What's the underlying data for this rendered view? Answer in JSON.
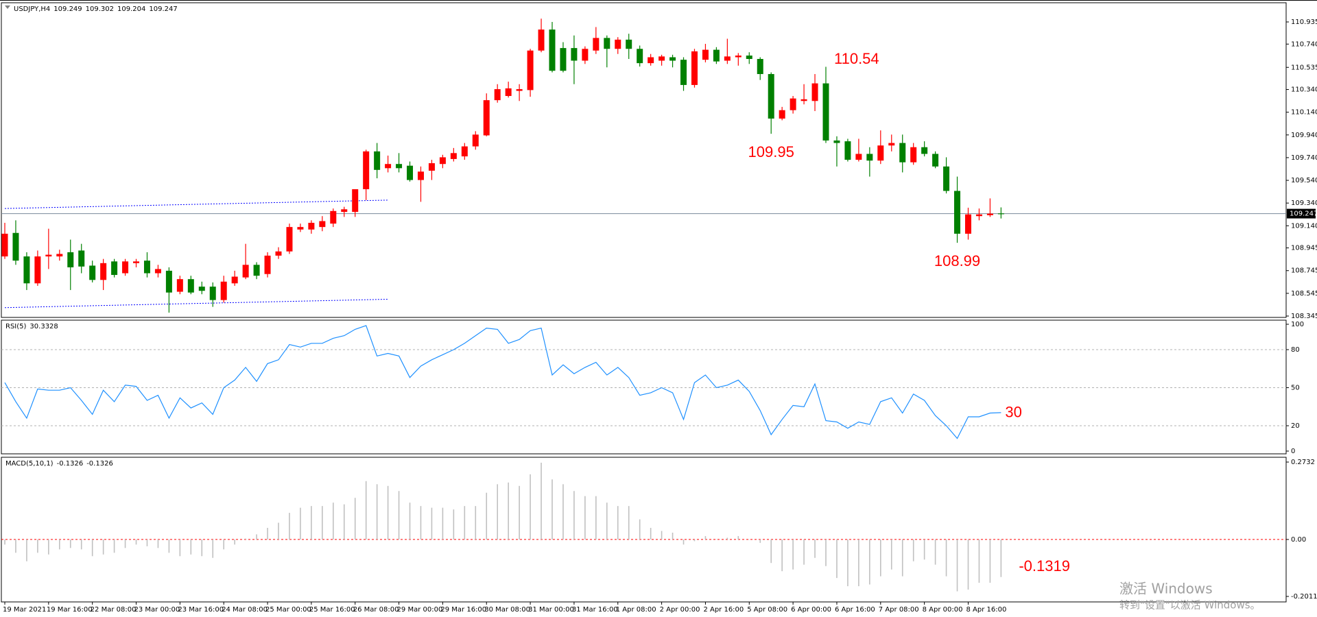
{
  "chart_data": [
    {
      "type": "candlestick",
      "title": "USDJPY,H4",
      "x": [
        "19 Mar 2021",
        null,
        null,
        null,
        "19 Mar 16:00",
        null,
        null,
        null,
        "22 Mar 08:00",
        null,
        null,
        null,
        "23 Mar 00:00",
        null,
        null,
        null,
        "23 Mar 16:00",
        null,
        null,
        null,
        "24 Mar 08:00",
        null,
        null,
        null,
        "25 Mar 00:00",
        null,
        null,
        null,
        "25 Mar 16:00",
        null,
        null,
        null,
        "26 Mar 08:00",
        null,
        null,
        null,
        "29 Mar 00:00",
        null,
        null,
        null,
        "29 Mar 16:00",
        null,
        null,
        null,
        "30 Mar 08:00",
        null,
        null,
        null,
        "31 Mar 00:00",
        null,
        null,
        null,
        "31 Mar 16:00",
        null,
        null,
        null,
        "1 Apr 08:00",
        null,
        null,
        null,
        "2 Apr 00:00",
        null,
        null,
        null,
        "2 Apr 16:00",
        null,
        null,
        null,
        "5 Apr 08:00",
        null,
        null,
        null,
        "6 Apr 00:00",
        null,
        null,
        null,
        "6 Apr 16:00",
        null,
        null,
        null,
        "7 Apr 08:00",
        null,
        null,
        null,
        "8 Apr 00:00",
        null,
        null,
        null,
        "8 Apr 16:00",
        null,
        null,
        null
      ],
      "open": [
        108.87,
        109.077,
        108.87,
        108.633,
        108.87,
        108.87,
        108.907,
        108.922,
        108.789,
        108.663,
        108.826,
        108.722,
        108.811,
        108.833,
        108.722,
        108.744,
        108.559,
        108.67,
        108.604,
        108.604,
        108.486,
        108.633,
        108.685,
        108.796,
        108.715,
        108.877,
        108.914,
        109.107,
        109.107,
        109.129,
        109.159,
        109.262,
        109.262,
        109.462,
        109.795,
        109.647,
        109.684,
        109.669,
        109.543,
        109.625,
        109.684,
        109.728,
        109.751,
        109.839,
        109.936,
        110.246,
        110.283,
        110.328,
        110.335,
        110.683,
        110.868,
        110.705,
        110.705,
        110.594,
        110.683,
        110.794,
        110.698,
        110.779,
        110.698,
        110.572,
        110.594,
        110.624,
        110.602,
        110.38,
        110.602,
        110.69,
        110.594,
        110.624,
        110.639,
        110.609,
        110.476,
        110.084,
        110.158,
        110.239,
        110.239,
        110.394,
        109.891,
        109.884,
        109.721,
        109.773,
        109.714,
        109.847,
        109.869,
        109.699,
        109.832,
        109.773,
        109.662,
        109.447,
        109.07,
        109.225,
        109.233,
        109.249
      ],
      "high": [
        109.166,
        109.188,
        108.907,
        108.922,
        109.114,
        108.929,
        109.018,
        108.981,
        108.833,
        108.848,
        108.848,
        108.848,
        108.848,
        108.907,
        108.796,
        108.774,
        108.7,
        108.7,
        108.648,
        108.641,
        108.7,
        108.744,
        108.981,
        108.819,
        108.907,
        108.951,
        109.159,
        109.159,
        109.188,
        109.225,
        109.292,
        109.307,
        109.462,
        109.81,
        109.869,
        109.758,
        109.78,
        109.706,
        109.662,
        109.721,
        109.765,
        109.825,
        109.869,
        109.973,
        110.306,
        110.387,
        110.409,
        110.387,
        110.698,
        110.964,
        110.935,
        110.757,
        110.816,
        110.72,
        110.89,
        110.816,
        110.801,
        110.831,
        110.727,
        110.653,
        110.646,
        110.646,
        110.624,
        110.698,
        110.742,
        110.713,
        110.787,
        110.661,
        110.668,
        110.624,
        110.491,
        110.187,
        110.283,
        110.387,
        110.476,
        110.54,
        109.928,
        109.906,
        109.906,
        109.832,
        109.98,
        109.943,
        109.943,
        109.869,
        109.884,
        109.795,
        109.743,
        109.573,
        109.299,
        109.292,
        109.381,
        109.302
      ],
      "low": [
        108.848,
        108.796,
        108.574,
        108.611,
        108.759,
        108.833,
        108.574,
        108.722,
        108.641,
        108.574,
        108.685,
        108.7,
        108.774,
        108.685,
        108.685,
        108.375,
        108.537,
        108.537,
        108.537,
        108.426,
        108.463,
        108.611,
        108.67,
        108.67,
        108.685,
        108.848,
        108.892,
        109.085,
        109.07,
        109.092,
        109.129,
        109.218,
        109.218,
        109.366,
        109.558,
        109.61,
        109.61,
        109.529,
        109.351,
        109.543,
        109.647,
        109.706,
        109.721,
        109.81,
        109.928,
        110.224,
        110.269,
        110.239,
        110.276,
        110.668,
        110.491,
        110.491,
        110.387,
        110.565,
        110.653,
        110.535,
        110.653,
        110.609,
        110.542,
        110.55,
        110.55,
        110.535,
        110.328,
        110.357,
        110.579,
        110.565,
        110.565,
        110.55,
        110.565,
        110.424,
        109.95,
        110.069,
        110.128,
        110.209,
        110.15,
        109.869,
        109.662,
        109.706,
        109.706,
        109.573,
        109.684,
        109.795,
        109.61,
        109.677,
        109.751,
        109.647,
        109.425,
        108.99,
        109.018,
        109.188,
        109.218,
        109.204
      ],
      "close": [
        109.07,
        108.833,
        108.633,
        108.87,
        108.885,
        108.892,
        108.774,
        108.781,
        108.663,
        108.811,
        108.707,
        108.826,
        108.826,
        108.722,
        108.759,
        108.552,
        108.67,
        108.552,
        108.567,
        108.486,
        108.648,
        108.692,
        108.796,
        108.7,
        108.877,
        108.914,
        109.129,
        109.129,
        109.166,
        109.181,
        109.27,
        109.285,
        109.462,
        109.795,
        109.632,
        109.684,
        109.647,
        109.543,
        109.617,
        109.691,
        109.743,
        109.78,
        109.839,
        109.943,
        110.246,
        110.343,
        110.35,
        110.343,
        110.683,
        110.868,
        110.505,
        110.505,
        110.594,
        110.698,
        110.794,
        110.698,
        110.779,
        110.698,
        110.572,
        110.624,
        110.631,
        110.594,
        110.38,
        110.676,
        110.69,
        110.587,
        110.631,
        110.639,
        110.609,
        110.476,
        110.084,
        110.158,
        110.261,
        110.254,
        110.394,
        109.891,
        109.869,
        109.721,
        109.773,
        109.714,
        109.847,
        109.869,
        109.699,
        109.832,
        109.773,
        109.662,
        109.447,
        109.07,
        109.24,
        109.24,
        109.247,
        109.247
      ],
      "up_color": "#ff0000",
      "down_color": "#008000",
      "ylim": [
        108.345,
        110.935
      ],
      "yticks": [
        110.935,
        {
          "value": 110.74,
          "label": "110.740"
        },
        110.535,
        {
          "value": 110.34,
          "label": "110.340"
        },
        {
          "value": 110.14,
          "label": "110.140"
        },
        {
          "value": 109.94,
          "label": "109.940"
        },
        {
          "value": 109.74,
          "label": "109.740"
        },
        {
          "value": 109.54,
          "label": "109.540"
        },
        {
          "value": 109.34,
          "label": "109.340"
        },
        {
          "value": 109.14,
          "label": "109.140"
        },
        108.945,
        108.745,
        108.545,
        108.345
      ],
      "grid": false,
      "trendlines": [
        {
          "x": [
            0,
            35
          ],
          "y": [
            109.292,
            109.366
          ]
        },
        {
          "x": [
            0,
            35
          ],
          "y": [
            108.419,
            108.493
          ]
        }
      ],
      "trendline_color": "#0000ff",
      "annotations": [
        110.54,
        109.95,
        108.99
      ]
    },
    {
      "type": "line",
      "title": "RSI(5)",
      "color": "#1e90ff",
      "values": [
        54,
        39,
        26,
        49,
        48,
        48,
        50,
        40,
        29,
        48,
        39,
        52,
        51,
        40,
        44,
        26,
        42,
        34,
        38,
        29,
        50,
        56,
        66,
        55,
        69,
        72,
        84,
        82,
        85,
        85,
        89,
        91,
        96,
        99,
        75,
        77,
        75,
        58,
        67,
        72,
        76,
        80,
        85,
        91,
        97,
        96,
        85,
        88,
        95,
        97,
        60,
        68,
        61,
        66,
        70,
        60,
        66,
        58,
        44,
        46,
        50,
        46,
        25,
        54,
        60,
        50,
        52,
        56,
        47,
        32,
        13,
        25,
        36,
        35,
        53,
        24,
        23,
        18,
        23,
        21,
        39,
        42,
        30,
        45,
        40,
        28,
        20,
        10,
        27,
        27,
        30,
        30.3328
      ],
      "ylim": [
        0,
        100
      ],
      "yticks": [
        100,
        80,
        50,
        20,
        0
      ],
      "grid": true,
      "grid_color": "#b0b0b0",
      "annotations": [
        30
      ]
    },
    {
      "type": "bar",
      "title": "MACD(5,10,1)",
      "color": "#c0c0c0",
      "values": [
        -0.018,
        -0.047,
        -0.077,
        -0.047,
        -0.053,
        -0.035,
        -0.03,
        -0.035,
        -0.059,
        -0.053,
        -0.047,
        -0.03,
        -0.018,
        -0.024,
        -0.03,
        -0.047,
        -0.059,
        -0.053,
        -0.059,
        -0.065,
        -0.035,
        -0.018,
        0.003,
        0.018,
        0.041,
        0.059,
        0.094,
        0.112,
        0.118,
        0.118,
        0.13,
        0.124,
        0.147,
        0.206,
        0.195,
        0.189,
        0.171,
        0.13,
        0.118,
        0.112,
        0.112,
        0.106,
        0.118,
        0.118,
        0.165,
        0.195,
        0.201,
        0.189,
        0.23,
        0.271,
        0.212,
        0.195,
        0.171,
        0.153,
        0.153,
        0.13,
        0.118,
        0.118,
        0.071,
        0.041,
        0.03,
        0.024,
        -0.018,
        -0.006,
        0.012,
        0.001,
        0.006,
        0.012,
        -0.001,
        -0.012,
        -0.083,
        -0.112,
        -0.106,
        -0.089,
        -0.065,
        -0.094,
        -0.136,
        -0.165,
        -0.165,
        -0.159,
        -0.13,
        -0.106,
        -0.13,
        -0.077,
        -0.071,
        -0.089,
        -0.13,
        -0.183,
        -0.177,
        -0.153,
        -0.153,
        -0.1326
      ],
      "ylim": [
        -0.2011,
        0.2732
      ],
      "yticks": [
        0.2732,
        {
          "value": 0,
          "label": "0.00"
        },
        -0.2011
      ],
      "grid": true,
      "grid_color": "#ff0000",
      "annotations": [
        -0.1319
      ]
    }
  ],
  "watermark": {
    "title": "激活 Windows",
    "subtitle": "转到\"设置\"以激活 Windows。"
  }
}
